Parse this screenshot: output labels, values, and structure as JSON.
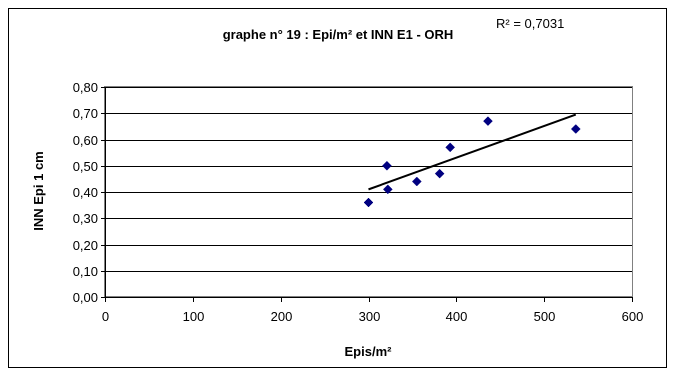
{
  "chart_data": {
    "type": "scatter",
    "title": "graphe n° 19 : Epi/m² et INN E1 - ORH",
    "r2_label": "R² = 0,7031",
    "xlabel": "Epis/m²",
    "ylabel": "INN Epi 1 cm",
    "xlim": [
      0,
      600
    ],
    "ylim": [
      0,
      0.8
    ],
    "x_ticks": [
      0,
      100,
      200,
      300,
      400,
      500,
      600
    ],
    "x_tick_labels": [
      "0",
      "100",
      "200",
      "300",
      "400",
      "500",
      "600"
    ],
    "y_ticks": [
      0,
      0.1,
      0.2,
      0.3,
      0.4,
      0.5,
      0.6,
      0.7,
      0.8
    ],
    "y_tick_labels": [
      "0,00",
      "0,10",
      "0,20",
      "0,30",
      "0,40",
      "0,50",
      "0,60",
      "0,70",
      "0,80"
    ],
    "grid": "horizontal",
    "marker": "diamond",
    "marker_color": "#000080",
    "trendline_color": "#000000",
    "points": [
      {
        "x": 300,
        "y": 0.36
      },
      {
        "x": 321,
        "y": 0.5
      },
      {
        "x": 322,
        "y": 0.41
      },
      {
        "x": 355,
        "y": 0.44
      },
      {
        "x": 381,
        "y": 0.47
      },
      {
        "x": 393,
        "y": 0.57
      },
      {
        "x": 436,
        "y": 0.67
      },
      {
        "x": 536,
        "y": 0.64
      }
    ],
    "trendline": {
      "x": [
        300,
        536
      ],
      "y": [
        0.41,
        0.695
      ]
    }
  }
}
